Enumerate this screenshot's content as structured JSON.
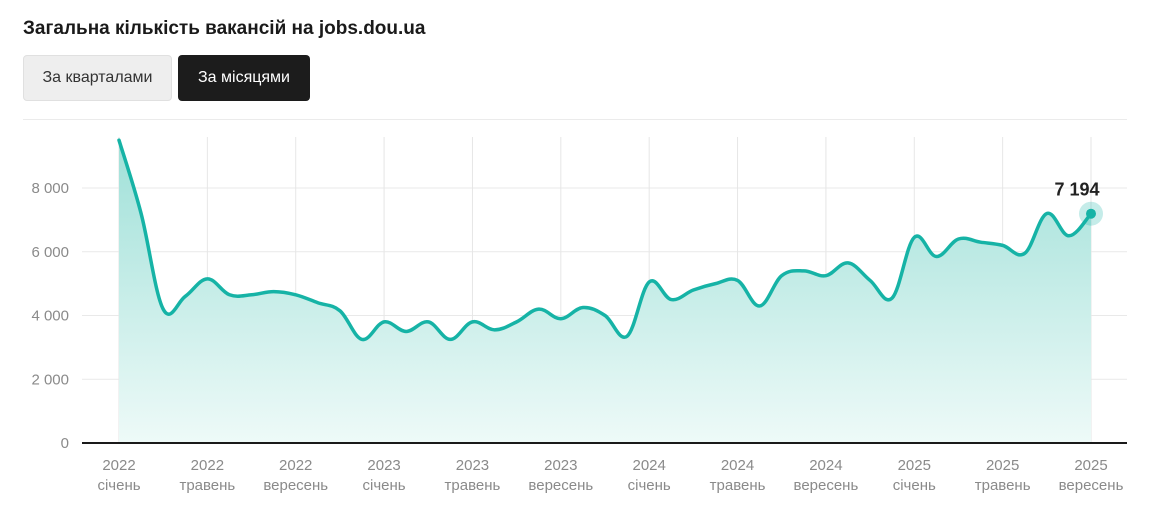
{
  "title": "Загальна кількість вакансій на jobs.dou.ua",
  "toggles": {
    "quarter_label": "За кварталами",
    "month_label": "За місяцями",
    "active": "month"
  },
  "colors": {
    "line": "#16b3a6",
    "fill_top": "#9fe0d8",
    "fill_bottom": "#eefaf8",
    "active_button": "#1c1c1c",
    "inactive_button": "#eeeeee"
  },
  "chart_data": {
    "type": "area",
    "title": "Загальна кількість вакансій на jobs.dou.ua",
    "xlabel": "",
    "ylabel": "",
    "ylim": [
      0,
      9600
    ],
    "y_ticks": [
      0,
      2000,
      4000,
      6000,
      8000
    ],
    "y_tick_labels": [
      "0",
      "2 000",
      "4 000",
      "6 000",
      "8 000"
    ],
    "x_ticks": [
      {
        "year": "2022",
        "month": "січень",
        "index": 0
      },
      {
        "year": "2022",
        "month": "травень",
        "index": 4
      },
      {
        "year": "2022",
        "month": "вересень",
        "index": 8
      },
      {
        "year": "2023",
        "month": "січень",
        "index": 12
      },
      {
        "year": "2023",
        "month": "травень",
        "index": 16
      },
      {
        "year": "2023",
        "month": "вересень",
        "index": 20
      },
      {
        "year": "2024",
        "month": "січень",
        "index": 24
      },
      {
        "year": "2024",
        "month": "травень",
        "index": 28
      },
      {
        "year": "2024",
        "month": "вересень",
        "index": 32
      },
      {
        "year": "2025",
        "month": "січень",
        "index": 36
      },
      {
        "year": "2025",
        "month": "травень",
        "index": 40
      },
      {
        "year": "2025",
        "month": "вересень",
        "index": 44
      }
    ],
    "grid": true,
    "x": [
      "2022-01",
      "2022-02",
      "2022-03",
      "2022-04",
      "2022-05",
      "2022-06",
      "2022-07",
      "2022-08",
      "2022-09",
      "2022-10",
      "2022-11",
      "2022-12",
      "2023-01",
      "2023-02",
      "2023-03",
      "2023-04",
      "2023-05",
      "2023-06",
      "2023-07",
      "2023-08",
      "2023-09",
      "2023-10",
      "2023-11",
      "2023-12",
      "2024-01",
      "2024-02",
      "2024-03",
      "2024-04",
      "2024-05",
      "2024-06",
      "2024-07",
      "2024-08",
      "2024-09",
      "2024-10",
      "2024-11",
      "2024-12",
      "2025-01",
      "2025-02",
      "2025-03",
      "2025-04",
      "2025-05",
      "2025-06",
      "2025-07",
      "2025-08",
      "2025-09"
    ],
    "series": [
      {
        "values": [
          9500,
          7200,
          4200,
          4600,
          5150,
          4650,
          4650,
          4750,
          4650,
          4400,
          4150,
          3250,
          3800,
          3500,
          3800,
          3250,
          3800,
          3550,
          3800,
          4200,
          3900,
          4250,
          4000,
          3350,
          5050,
          4500,
          4800,
          5000,
          5100,
          4300,
          5250,
          5400,
          5250,
          5650,
          5100,
          4550,
          6450,
          5850,
          6400,
          6300,
          6200,
          5950,
          7200,
          6500,
          7194
        ]
      }
    ],
    "last_value_label": "7 194"
  }
}
